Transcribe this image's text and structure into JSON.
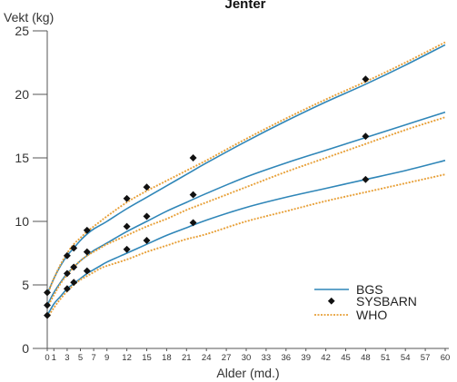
{
  "chart_data": {
    "type": "line",
    "title": "Jenter",
    "ylabel": "Vekt (kg)",
    "xlabel": "Alder (md.)",
    "xlim": [
      0,
      60
    ],
    "ylim": [
      0,
      25
    ],
    "x_ticks": [
      "0",
      "1",
      "3",
      "5",
      "7",
      "9",
      "12",
      "15",
      "18",
      "21",
      "24",
      "27",
      "30",
      "33",
      "36",
      "39",
      "42",
      "45",
      "48",
      "51",
      "54",
      "57",
      "60"
    ],
    "x_tick_values": [
      0,
      1,
      3,
      5,
      7,
      9,
      12,
      15,
      18,
      21,
      24,
      27,
      30,
      33,
      36,
      39,
      42,
      45,
      48,
      51,
      54,
      57,
      60
    ],
    "y_ticks": [
      "0",
      "5",
      "10",
      "15",
      "20",
      "25"
    ],
    "y_tick_values": [
      0,
      5,
      10,
      15,
      20,
      25
    ],
    "legend": {
      "position": "bottom-right",
      "entries": [
        "BGS",
        "SYSBARN",
        "WHO"
      ]
    },
    "colors": {
      "BGS": "#2f86b8",
      "SYSBARN": "#111111",
      "WHO": "#e8a13a"
    },
    "series": [
      {
        "name": "BGS",
        "style": "solid",
        "curves": [
          {
            "x": [
              0,
              1,
              2,
              3,
              4,
              5,
              6,
              7,
              8,
              9,
              12,
              15,
              18,
              21,
              24,
              30,
              36,
              42,
              48,
              54,
              60
            ],
            "y": [
              4.3,
              5.5,
              6.5,
              7.3,
              7.9,
              8.5,
              9.0,
              9.4,
              9.7,
              10.0,
              11.0,
              11.9,
              12.8,
              13.7,
              14.6,
              16.3,
              17.9,
              19.4,
              20.8,
              22.3,
              23.9
            ]
          },
          {
            "x": [
              0,
              1,
              2,
              3,
              4,
              5,
              6,
              7,
              8,
              9,
              12,
              15,
              18,
              21,
              24,
              30,
              36,
              42,
              48,
              54,
              60
            ],
            "y": [
              3.4,
              4.4,
              5.2,
              5.9,
              6.4,
              6.9,
              7.3,
              7.7,
              8.0,
              8.3,
              9.2,
              10.0,
              10.8,
              11.5,
              12.2,
              13.5,
              14.6,
              15.6,
              16.6,
              17.6,
              18.6
            ]
          },
          {
            "x": [
              0,
              1,
              2,
              3,
              4,
              5,
              6,
              7,
              8,
              9,
              12,
              15,
              18,
              21,
              24,
              30,
              36,
              42,
              48,
              54,
              60
            ],
            "y": [
              2.6,
              3.5,
              4.1,
              4.7,
              5.1,
              5.5,
              5.9,
              6.2,
              6.5,
              6.8,
              7.5,
              8.2,
              8.9,
              9.5,
              10.1,
              11.1,
              11.9,
              12.6,
              13.3,
              14.0,
              14.8
            ]
          }
        ]
      },
      {
        "name": "SYSBARN",
        "style": "markers",
        "points": [
          [
            0,
            4.4
          ],
          [
            3,
            7.3
          ],
          [
            4,
            7.9
          ],
          [
            6,
            9.3
          ],
          [
            12,
            11.8
          ],
          [
            15,
            12.7
          ],
          [
            22,
            15.0
          ],
          [
            48,
            21.2
          ],
          [
            0,
            3.4
          ],
          [
            3,
            5.9
          ],
          [
            4,
            6.4
          ],
          [
            6,
            7.6
          ],
          [
            12,
            9.6
          ],
          [
            15,
            10.4
          ],
          [
            22,
            12.1
          ],
          [
            48,
            16.7
          ],
          [
            0,
            2.6
          ],
          [
            3,
            4.7
          ],
          [
            4,
            5.2
          ],
          [
            6,
            6.1
          ],
          [
            12,
            7.8
          ],
          [
            15,
            8.5
          ],
          [
            22,
            9.9
          ],
          [
            48,
            13.3
          ]
        ]
      },
      {
        "name": "WHO",
        "style": "dotted",
        "curves": [
          {
            "x": [
              0,
              1,
              2,
              3,
              4,
              5,
              6,
              7,
              8,
              9,
              12,
              15,
              18,
              21,
              24,
              30,
              36,
              42,
              48,
              54,
              60
            ],
            "y": [
              4.2,
              5.5,
              6.6,
              7.5,
              8.2,
              8.7,
              9.2,
              9.6,
              10.0,
              10.4,
              11.5,
              12.4,
              13.2,
              14.0,
              14.8,
              16.5,
              18.1,
              19.6,
              21.0,
              22.5,
              24.1
            ]
          },
          {
            "x": [
              0,
              1,
              2,
              3,
              4,
              5,
              6,
              7,
              8,
              9,
              12,
              15,
              18,
              21,
              24,
              30,
              36,
              42,
              48,
              54,
              60
            ],
            "y": [
              3.2,
              4.2,
              5.1,
              5.8,
              6.4,
              6.9,
              7.3,
              7.6,
              7.9,
              8.2,
              8.9,
              9.6,
              10.2,
              10.9,
              11.5,
              12.7,
              13.9,
              15.0,
              16.1,
              17.2,
              18.2
            ]
          },
          {
            "x": [
              0,
              1,
              2,
              3,
              4,
              5,
              6,
              7,
              8,
              9,
              12,
              15,
              18,
              21,
              24,
              30,
              36,
              42,
              48,
              54,
              60
            ],
            "y": [
              2.4,
              3.2,
              3.9,
              4.5,
              5.0,
              5.4,
              5.7,
              6.0,
              6.3,
              6.5,
              7.0,
              7.6,
              8.1,
              8.6,
              9.0,
              10.0,
              10.8,
              11.6,
              12.3,
              13.0,
              13.7
            ]
          }
        ]
      }
    ]
  }
}
